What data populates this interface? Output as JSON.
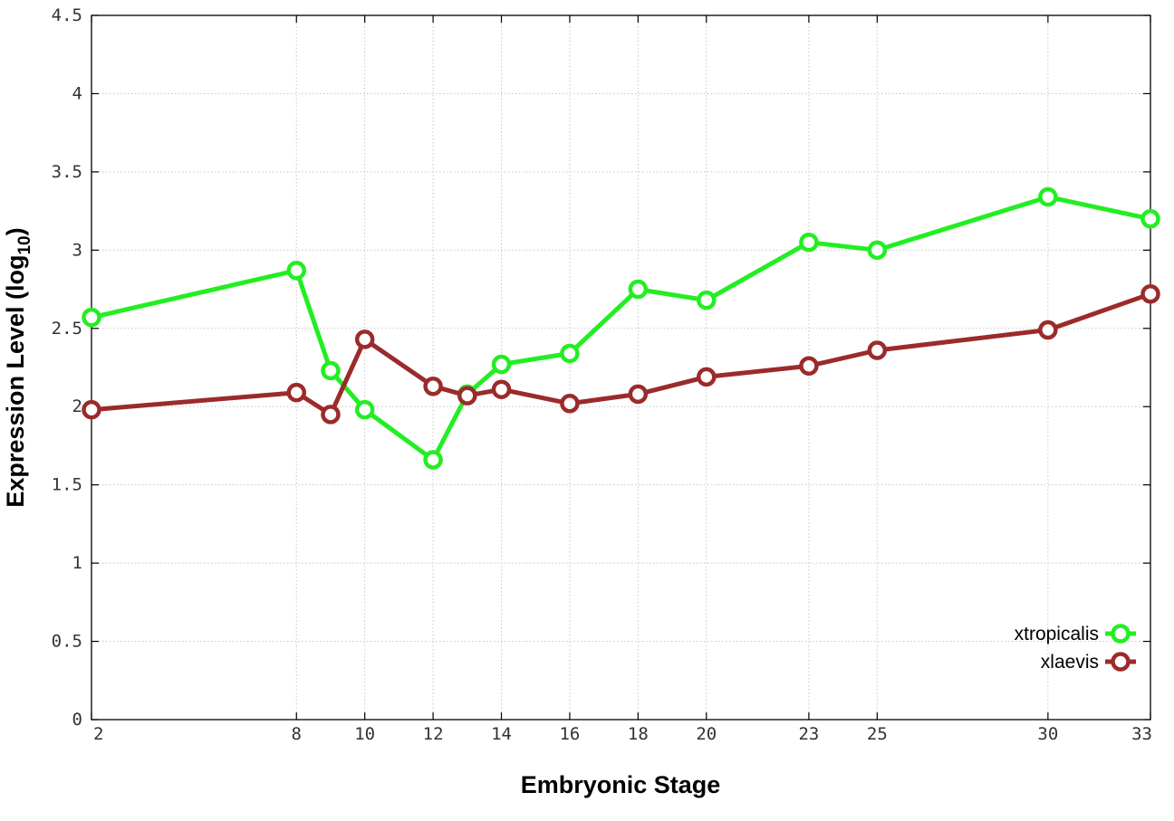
{
  "chart_data": {
    "type": "line",
    "xlabel": "Embryonic Stage",
    "ylabel_main": "Expression Level (log",
    "ylabel_sub": "10",
    "ylabel_close": ")",
    "xlim": [
      2,
      33
    ],
    "ylim": [
      0,
      4.5
    ],
    "x_ticks": [
      2,
      8,
      10,
      12,
      14,
      16,
      18,
      20,
      23,
      25,
      30,
      33
    ],
    "x_tick_labels": [
      "2",
      "8",
      "10",
      "12",
      "14",
      "16",
      "18",
      "20",
      "23",
      "25",
      "30",
      "33"
    ],
    "y_ticks": [
      0,
      0.5,
      1,
      1.5,
      2,
      2.5,
      3,
      3.5,
      4,
      4.5
    ],
    "y_tick_labels": [
      "0",
      "0.5",
      "1",
      "1.5",
      "2",
      "2.5",
      "3",
      "3.5",
      "4",
      "4.5"
    ],
    "grid": true,
    "legend_position": "bottom-right",
    "x": [
      2,
      8,
      9,
      10,
      12,
      13,
      14,
      16,
      18,
      20,
      23,
      25,
      30,
      33
    ],
    "series": [
      {
        "name": "xtropicalis",
        "color": "#22ee22",
        "values": [
          2.57,
          2.87,
          2.23,
          1.98,
          1.66,
          2.08,
          2.27,
          2.34,
          2.75,
          2.68,
          3.05,
          3.0,
          3.34,
          3.2
        ]
      },
      {
        "name": "xlaevis",
        "color": "#9b2b2b",
        "values": [
          1.98,
          2.09,
          1.95,
          2.43,
          2.13,
          2.07,
          2.11,
          2.02,
          2.08,
          2.19,
          2.26,
          2.36,
          2.49,
          2.72
        ]
      }
    ]
  }
}
